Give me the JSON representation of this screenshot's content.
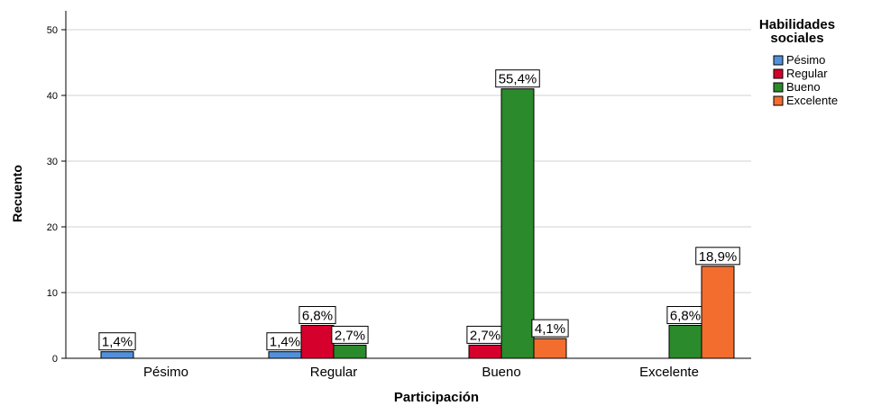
{
  "chart_data": {
    "type": "bar",
    "x_label": "Participación",
    "y_label": "Recuento",
    "legend_title": "Habilidades sociales",
    "legend_position": "right",
    "categories": [
      "Pésimo",
      "Regular",
      "Bueno",
      "Excelente"
    ],
    "series": [
      {
        "name": "Pésimo",
        "color": "#5191dc",
        "values": [
          1,
          1,
          null,
          null
        ],
        "value_labels": [
          "1,4%",
          "1,4%",
          null,
          null
        ]
      },
      {
        "name": "Regular",
        "color": "#d5002b",
        "values": [
          null,
          5,
          2,
          null
        ],
        "value_labels": [
          null,
          "6,8%",
          "2,7%",
          null
        ]
      },
      {
        "name": "Bueno",
        "color": "#2b8a2b",
        "values": [
          null,
          2,
          41,
          5
        ],
        "value_labels": [
          null,
          "2,7%",
          "55,4%",
          "6,8%"
        ]
      },
      {
        "name": "Excelente",
        "color": "#f26d2e",
        "values": [
          null,
          null,
          3,
          14
        ],
        "value_labels": [
          null,
          null,
          "4,1%",
          "18,9%"
        ]
      }
    ],
    "ylim": [
      0,
      50
    ],
    "yticks": [
      0,
      10,
      20,
      30,
      40,
      50
    ],
    "grid": true
  }
}
